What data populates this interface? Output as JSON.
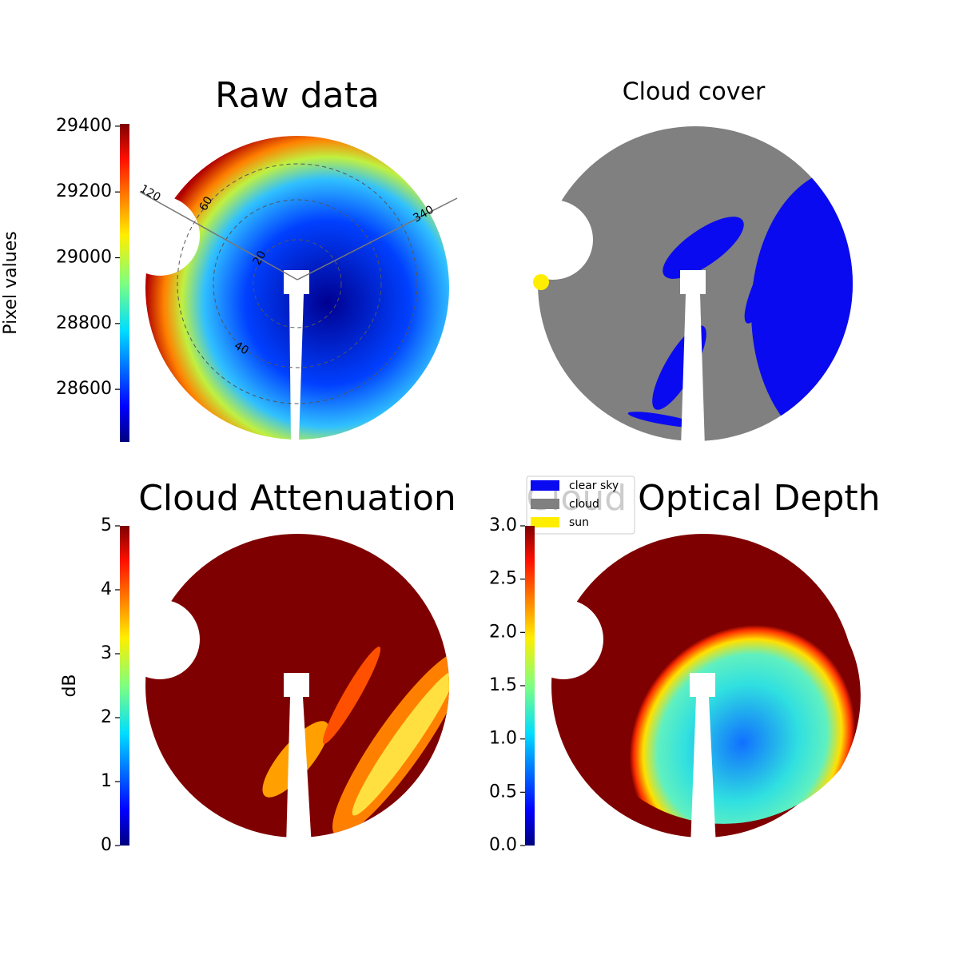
{
  "panels": [
    {
      "title": "Raw data",
      "colorbar": {
        "label": "Pixel values",
        "lim": [
          28440,
          29407
        ],
        "ticks": [
          28600,
          28800,
          29000,
          29200,
          29400
        ]
      },
      "polar_labels": [
        "120",
        "60",
        "20",
        "40",
        "340"
      ]
    },
    {
      "title": "Cloud cover",
      "legend": [
        {
          "name": "clear sky",
          "color": "#0a0af0"
        },
        {
          "name": "cloud",
          "color": "#808080"
        },
        {
          "name": "sun",
          "color": "#ffee00"
        }
      ]
    },
    {
      "title": "Cloud Attenuation",
      "colorbar": {
        "label": "dB",
        "lim": [
          0,
          5
        ],
        "ticks": [
          0,
          1,
          2,
          3,
          4,
          5
        ]
      }
    },
    {
      "title": "Cloud Optical Depth",
      "colorbar": {
        "lim": [
          0,
          3
        ],
        "ticks": [
          {
            "value": 0,
            "label": "0.0"
          },
          0.5,
          {
            "value": 1,
            "label": "1.0"
          },
          1.5,
          {
            "value": 2,
            "label": "2.0"
          },
          2.5,
          {
            "value": 3,
            "label": "3.0"
          }
        ]
      }
    }
  ]
}
